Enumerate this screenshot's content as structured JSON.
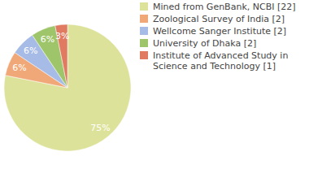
{
  "chart_data": {
    "type": "pie",
    "categories": [
      "Mined from GenBank, NCBI [22]",
      "Zoological Survey of India [2]",
      "Wellcome Sanger Institute [2]",
      "University of Dhaka [2]",
      "Institute of Advanced Study in Science and Technology [1]"
    ],
    "values": [
      75,
      6,
      6,
      6,
      3
    ],
    "value_labels": [
      "75%",
      "6%",
      "6%",
      "6%",
      "3%"
    ],
    "data_labels": true,
    "colors": [
      "#dde29a",
      "#f0a878",
      "#a6bbe6",
      "#9fc56b",
      "#e07a60"
    ],
    "legend": "right"
  }
}
